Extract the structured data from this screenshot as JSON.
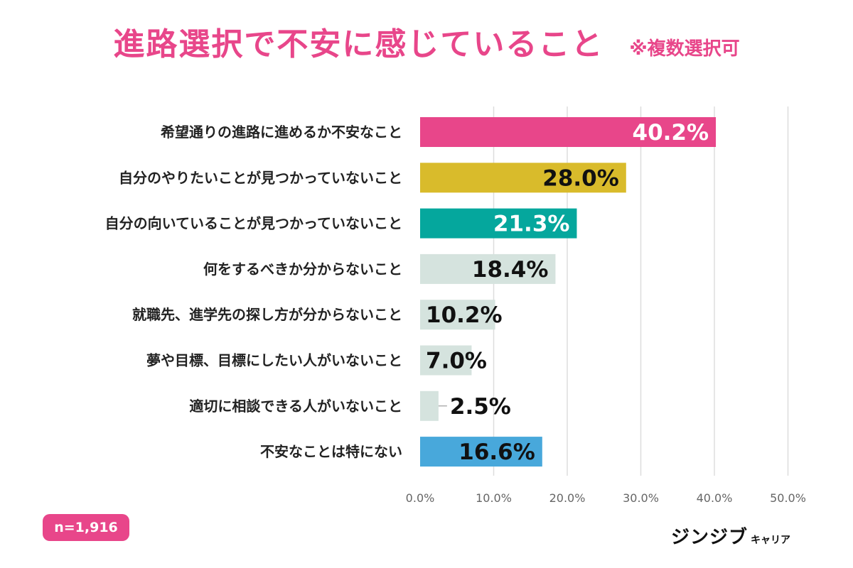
{
  "header": {
    "title": "進路選択で不安に感じていること",
    "note": "※複数選択可"
  },
  "sample": {
    "label": "n=1,916"
  },
  "brand": {
    "main": "ジンジブ",
    "sub": "キャリア"
  },
  "colors": {
    "pink": "#e8468a",
    "gold": "#d9bb2b",
    "teal": "#05a79d",
    "gray": "#d5e3de",
    "blue": "#48a8db",
    "grid": "#dddddd",
    "axis_text": "#666666"
  },
  "chart_data": {
    "type": "bar",
    "orientation": "horizontal",
    "title": "進路選択で不安に感じていること",
    "xlim": [
      0,
      50
    ],
    "xticks": [
      "0.0%",
      "10.0%",
      "20.0%",
      "30.0%",
      "40.0%",
      "50.0%"
    ],
    "grid": true,
    "categories": [
      "希望通りの進路に進めるか不安なこと",
      "自分のやりたいことが見つかっていないこと",
      "自分の向いていることが見つかっていないこと",
      "何をするべきか分からないこと",
      "就職先、進学先の探し方が分からないこと",
      "夢や目標、目標にしたい人がいないこと",
      "適切に相談できる人がいないこと",
      "不安なことは特にない"
    ],
    "values": [
      40.2,
      28.0,
      21.3,
      18.4,
      10.2,
      7.0,
      2.5,
      16.6
    ],
    "value_labels": [
      "40.2%",
      "28.0%",
      "21.3%",
      "18.4%",
      "10.2%",
      "7.0%",
      "2.5%",
      "16.6%"
    ],
    "bar_colors": [
      "#e8468a",
      "#d9bb2b",
      "#05a79d",
      "#d5e3de",
      "#d5e3de",
      "#d5e3de",
      "#d5e3de",
      "#48a8db"
    ],
    "label_colors": [
      "#ffffff",
      "#111111",
      "#ffffff",
      "#111111",
      "#111111",
      "#111111",
      "#111111",
      "#111111"
    ]
  }
}
